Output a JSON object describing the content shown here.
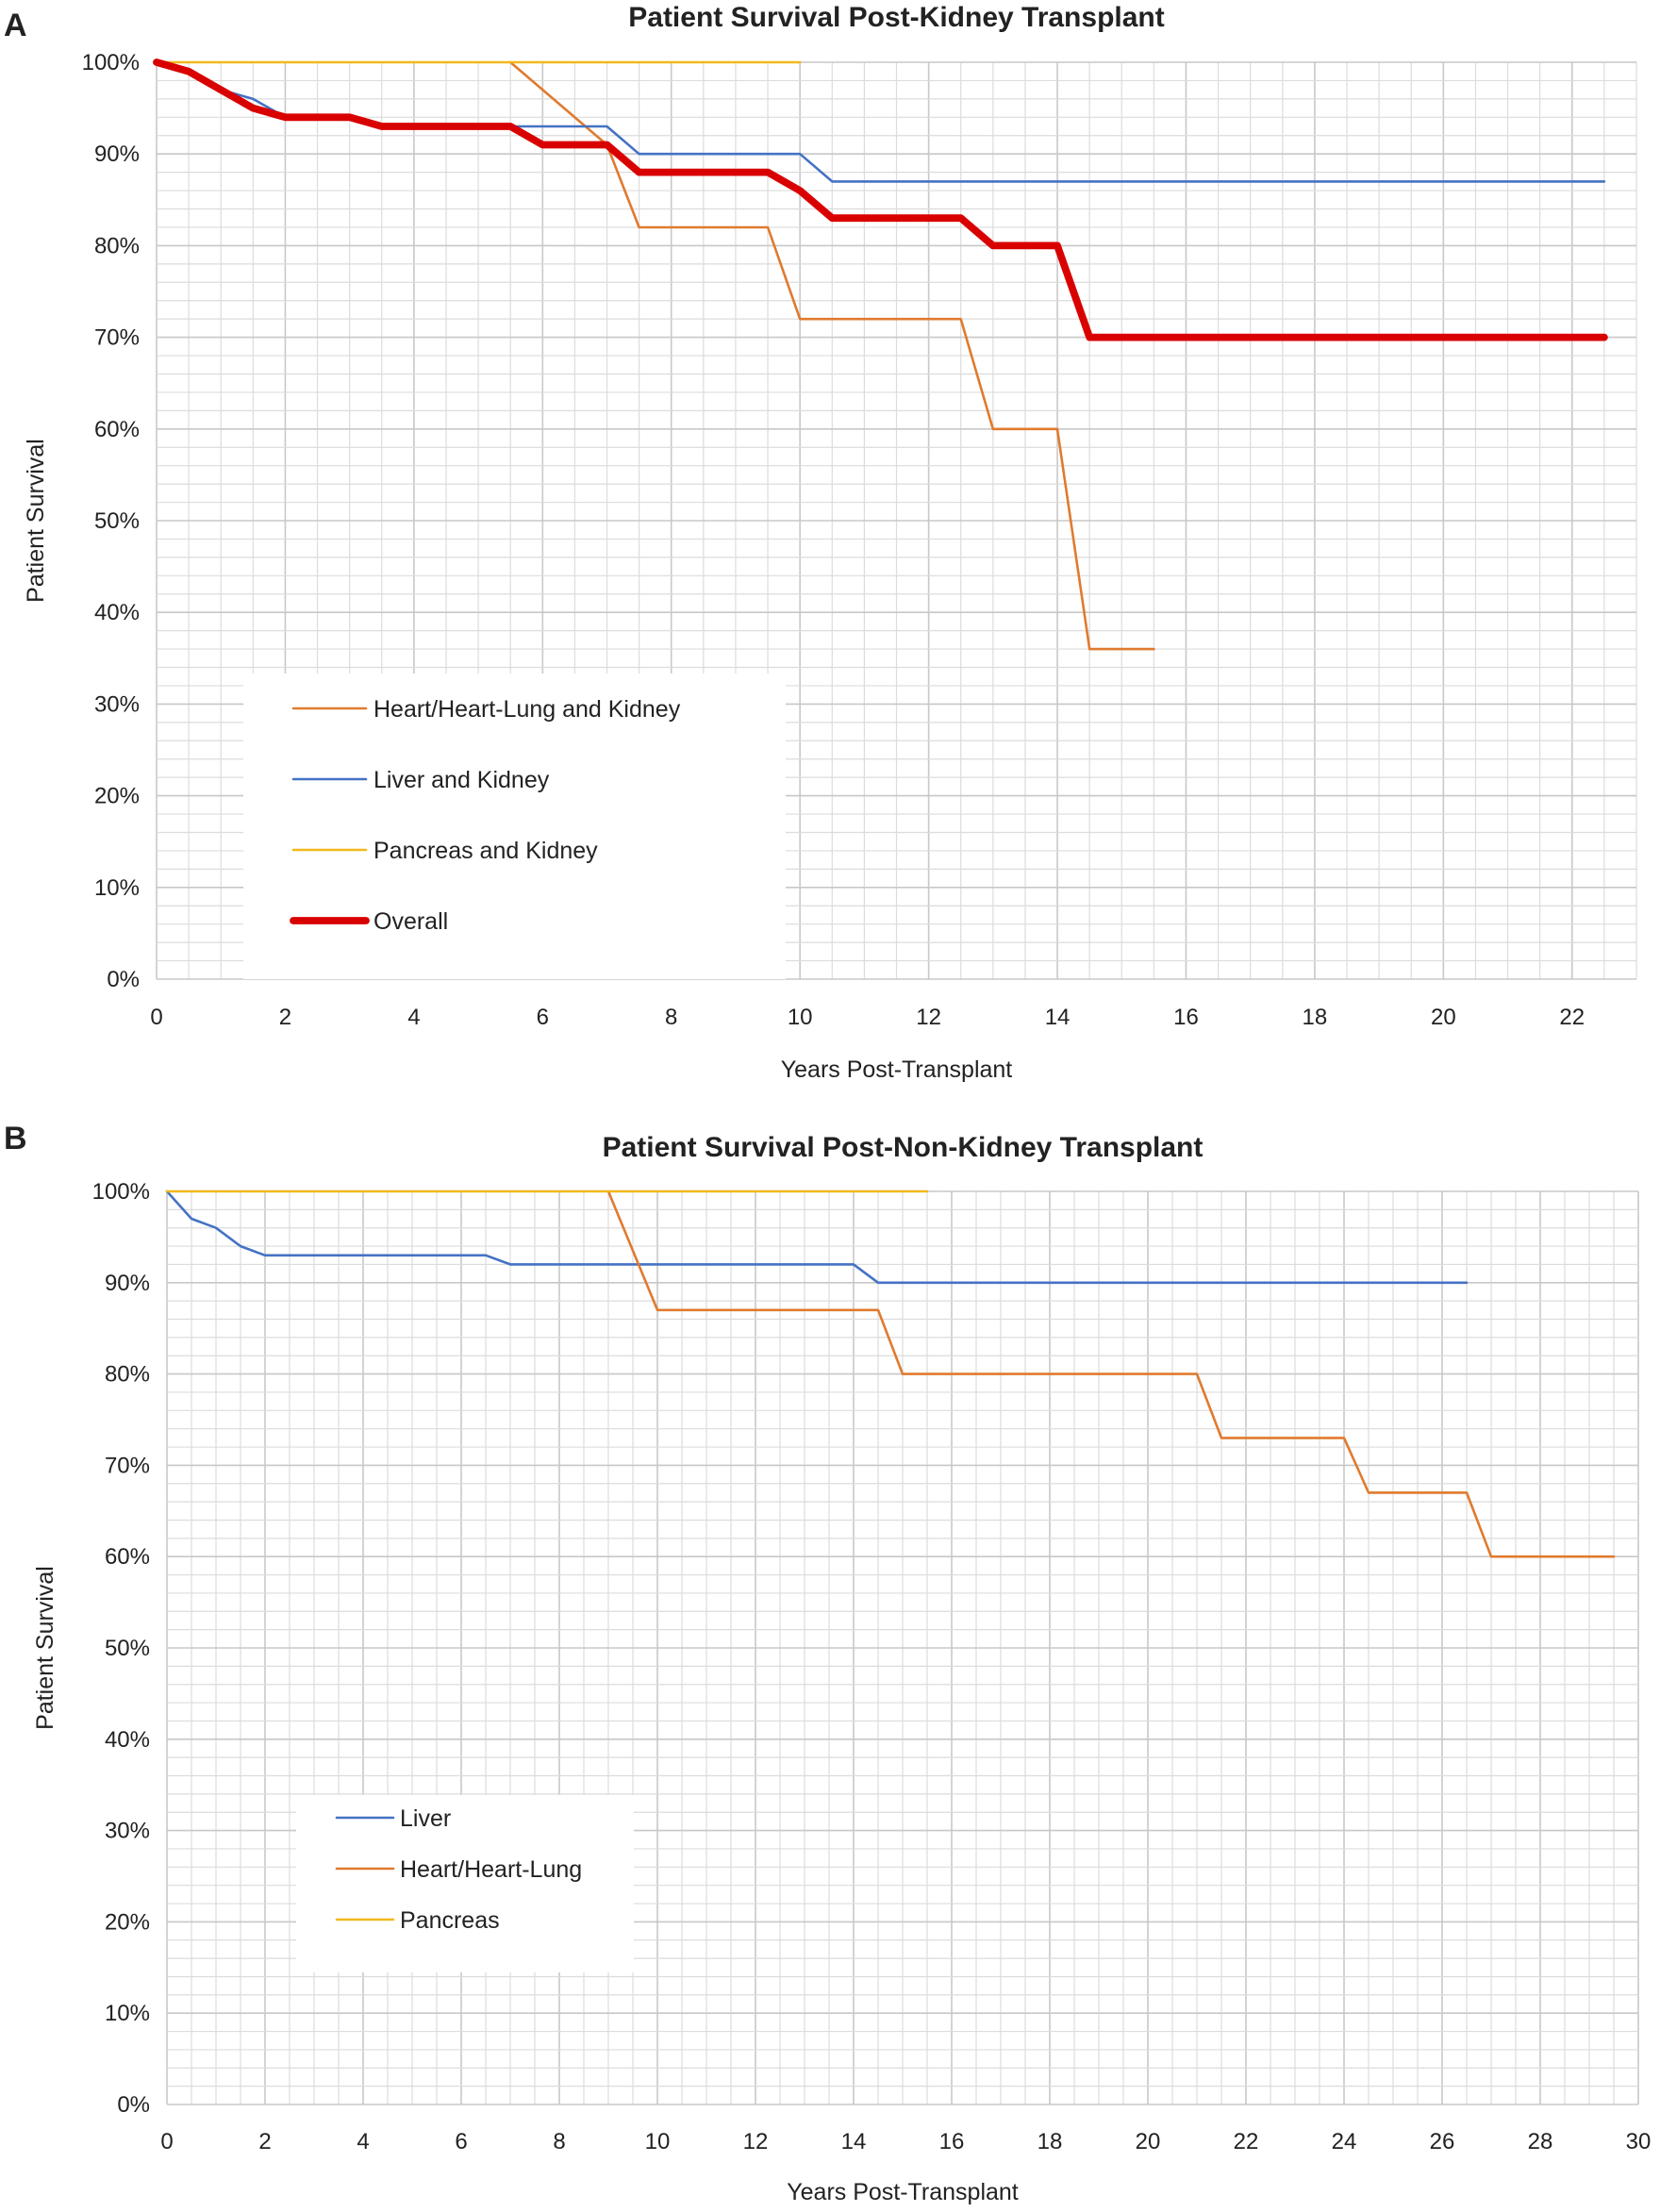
{
  "chart_data": [
    {
      "panel": "A",
      "type": "line",
      "title": "Patient Survival Post-Kidney Transplant",
      "xlabel": "Years Post-Transplant",
      "ylabel": "Patient Survival",
      "xlim": [
        0,
        23
      ],
      "ylim": [
        0,
        100
      ],
      "xticks": [
        "0",
        "2",
        "4",
        "6",
        "8",
        "10",
        "12",
        "14",
        "16",
        "18",
        "20",
        "22"
      ],
      "yticks": [
        "0%",
        "10%",
        "20%",
        "30%",
        "40%",
        "50%",
        "60%",
        "70%",
        "80%",
        "90%",
        "100%"
      ],
      "grid": true,
      "legend_position": "bottom-left",
      "series": [
        {
          "name": "Heart/Heart-Lung and Kidney",
          "color": "#E07A2E",
          "width": 2,
          "x": [
            5.5,
            7.0,
            7.5,
            9.5,
            10.0,
            12.5,
            13.0,
            14.0,
            14.5,
            15.5
          ],
          "y": [
            100,
            91,
            82,
            82,
            72,
            72,
            60,
            60,
            36,
            36
          ]
        },
        {
          "name": "Liver and Kidney",
          "color": "#4472C4",
          "width": 2,
          "x": [
            0,
            0.5,
            1.0,
            1.5,
            2.0,
            3.0,
            3.5,
            5.5,
            6.0,
            7.0,
            7.5,
            10.0,
            10.5,
            22.5
          ],
          "y": [
            100,
            99,
            97,
            96,
            94,
            94,
            93,
            93,
            93,
            93,
            90,
            90,
            87,
            87
          ]
        },
        {
          "name": "Pancreas and Kidney",
          "color": "#F2B81D",
          "width": 2,
          "x": [
            0,
            10.0
          ],
          "y": [
            100,
            100
          ]
        },
        {
          "name": "Overall",
          "color": "#D90000",
          "width": 6,
          "x": [
            0,
            0.5,
            1.0,
            1.5,
            2.0,
            3.0,
            3.5,
            5.5,
            6.0,
            7.0,
            7.5,
            9.5,
            10.0,
            10.5,
            12.5,
            13.0,
            14.0,
            14.5,
            22.5
          ],
          "y": [
            100,
            99,
            97,
            95,
            94,
            94,
            93,
            93,
            91,
            91,
            88,
            88,
            86,
            83,
            83,
            80,
            80,
            70,
            70
          ]
        }
      ]
    },
    {
      "panel": "B",
      "type": "line",
      "title": "Patient Survival Post-Non-Kidney Transplant",
      "xlabel": "Years Post-Transplant",
      "ylabel": "Patient Survival",
      "xlim": [
        0,
        30
      ],
      "ylim": [
        0,
        100
      ],
      "xticks": [
        "0",
        "2",
        "4",
        "6",
        "8",
        "10",
        "12",
        "14",
        "16",
        "18",
        "20",
        "22",
        "24",
        "26",
        "28",
        "30"
      ],
      "yticks": [
        "0%",
        "10%",
        "20%",
        "30%",
        "40%",
        "50%",
        "60%",
        "70%",
        "80%",
        "90%",
        "100%"
      ],
      "grid": true,
      "legend_position": "bottom-left",
      "series": [
        {
          "name": "Liver",
          "color": "#4472C4",
          "width": 2,
          "x": [
            0,
            0.5,
            1.0,
            1.5,
            2.0,
            6.5,
            7.0,
            14.0,
            14.5,
            26.5
          ],
          "y": [
            100,
            97,
            96,
            94,
            93,
            93,
            92,
            92,
            90,
            90
          ]
        },
        {
          "name": "Heart/Heart-Lung",
          "color": "#E07A2E",
          "width": 2,
          "x": [
            9.0,
            10.0,
            14.5,
            15.0,
            21.0,
            21.5,
            24.0,
            24.5,
            26.5,
            27.0,
            29.5
          ],
          "y": [
            100,
            87,
            87,
            80,
            80,
            73,
            73,
            67,
            67,
            60,
            60
          ]
        },
        {
          "name": "Pancreas",
          "color": "#F2B81D",
          "width": 2,
          "x": [
            0,
            15.5
          ],
          "y": [
            100,
            100
          ]
        }
      ]
    }
  ],
  "panels": {
    "A": {
      "letter": "A"
    },
    "B": {
      "letter": "B"
    }
  }
}
